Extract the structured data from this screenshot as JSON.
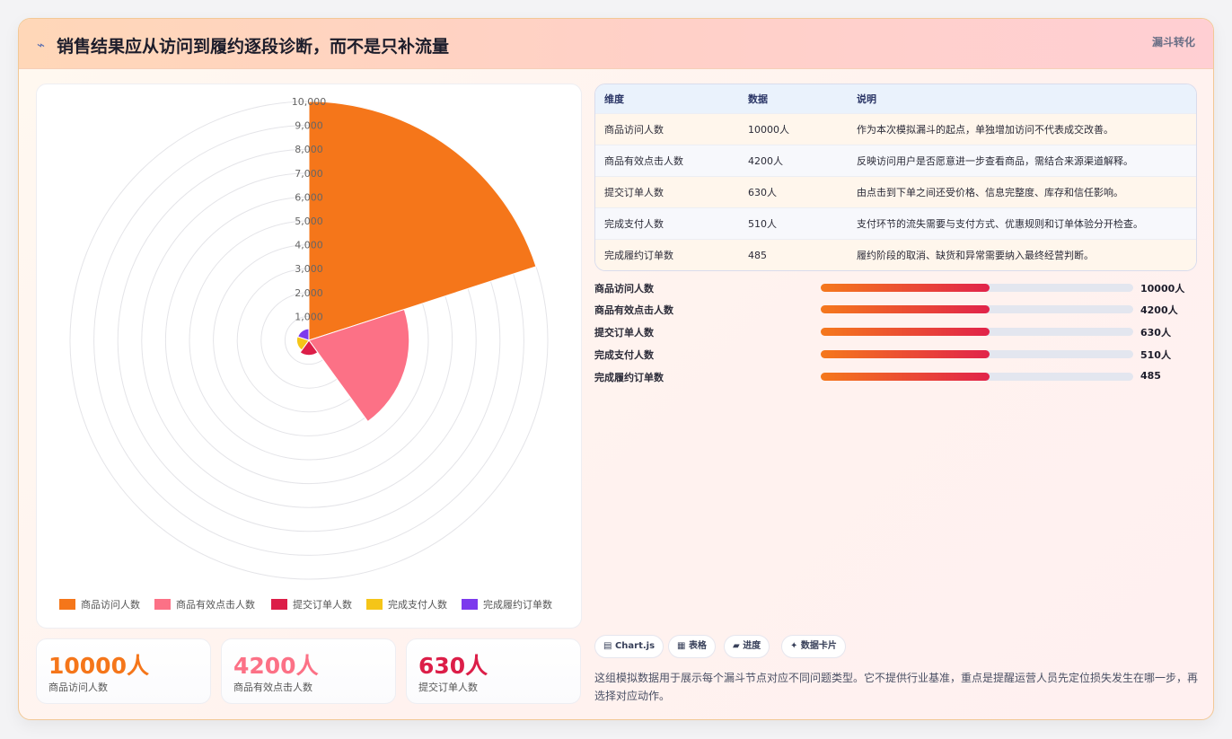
{
  "header": {
    "icon": "trend-icon",
    "title": "销售结果应从访问到履约逐段诊断，而不是只补流量",
    "tag": "漏斗转化"
  },
  "colors": {
    "orange": "#f5761a",
    "pink": "#fc7186",
    "crimson": "#dc1e48",
    "yellow": "#f5c518",
    "purple": "#7c3aed"
  },
  "chart_data": {
    "type": "polarArea",
    "categories": [
      "商品访问人数",
      "商品有效点击人数",
      "提交订单人数",
      "完成支付人数",
      "完成履约订单数"
    ],
    "values": [
      10000,
      4200,
      630,
      510,
      485
    ],
    "colors": [
      "#f5761a",
      "#fc7186",
      "#dc1e48",
      "#f5c518",
      "#7c3aed"
    ],
    "r_ticks": [
      "1,000",
      "2,000",
      "3,000",
      "4,000",
      "5,000",
      "6,000",
      "7,000",
      "8,000",
      "9,000",
      "10,000"
    ],
    "r_range": [
      0,
      10000
    ],
    "legend_position": "bottom",
    "grid": true
  },
  "stats": [
    {
      "value": "10000人",
      "label": "商品访问人数",
      "color": "#f5761a"
    },
    {
      "value": "4200人",
      "label": "商品有效点击人数",
      "color": "#fc7186"
    },
    {
      "value": "630人",
      "label": "提交订单人数",
      "color": "#dc1e48"
    }
  ],
  "table": {
    "headers": [
      "维度",
      "数据",
      "说明"
    ],
    "rows": [
      {
        "dim": "商品访问人数",
        "data": "10000人",
        "desc": "作为本次模拟漏斗的起点，单独增加访问不代表成交改善。"
      },
      {
        "dim": "商品有效点击人数",
        "data": "4200人",
        "desc": "反映访问用户是否愿意进一步查看商品，需结合来源渠道解释。"
      },
      {
        "dim": "提交订单人数",
        "data": "630人",
        "desc": "由点击到下单之间还受价格、信息完整度、库存和信任影响。"
      },
      {
        "dim": "完成支付人数",
        "data": "510人",
        "desc": "支付环节的流失需要与支付方式、优惠规则和订单体验分开检查。"
      },
      {
        "dim": "完成履约订单数",
        "data": "485",
        "desc": "履约阶段的取消、缺货和异常需要纳入最终经营判断。"
      }
    ]
  },
  "progress": [
    {
      "label": "商品访问人数",
      "value": "10000人",
      "fraction": 0.54
    },
    {
      "label": "商品有效点击人数",
      "value": "4200人",
      "fraction": 0.54
    },
    {
      "label": "提交订单人数",
      "value": "630人",
      "fraction": 0.54
    },
    {
      "label": "完成支付人数",
      "value": "510人",
      "fraction": 0.54
    },
    {
      "label": "完成履约订单数",
      "value": "485",
      "fraction": 0.54
    }
  ],
  "chips": [
    {
      "icon": "chart-icon",
      "glyph": "▤",
      "label": "Chart.js"
    },
    {
      "icon": "table-icon",
      "glyph": "▦",
      "label": "表格"
    },
    {
      "icon": "progress-icon",
      "glyph": "▰",
      "label": "进度"
    },
    {
      "icon": "sparkle-icon",
      "glyph": "✦",
      "label": "数据卡片"
    }
  ],
  "note": "这组模拟数据用于展示每个漏斗节点对应不同问题类型。它不提供行业基准，重点是提醒运营人员先定位损失发生在哪一步，再选择对应动作。"
}
